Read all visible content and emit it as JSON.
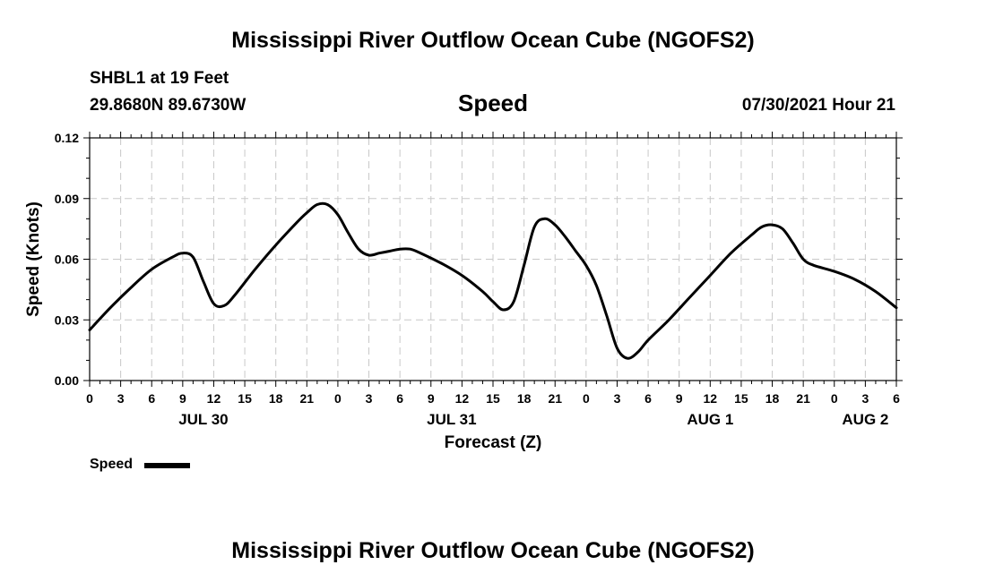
{
  "header": {
    "title_top": "Mississippi River Outflow Ocean Cube (NGOFS2)",
    "station_line": "SHBL1 at 19 Feet",
    "coords_line": "29.8680N  89.6730W",
    "variable": "Speed",
    "datetime": "07/30/2021 Hour 21",
    "title_bottom": "Mississippi River Outflow Ocean Cube (NGOFS2)"
  },
  "legend": {
    "label": "Speed",
    "color": "#000000"
  },
  "chart_data": {
    "type": "line",
    "title": "Speed",
    "xlabel": "Forecast (Z)",
    "ylabel": "Speed (Knots)",
    "xlim": [
      0,
      78
    ],
    "ylim": [
      0,
      0.12
    ],
    "grid": true,
    "x_tick_values": [
      0,
      3,
      6,
      9,
      12,
      15,
      18,
      21,
      24,
      27,
      30,
      33,
      36,
      39,
      42,
      45,
      48,
      51,
      54,
      57,
      60,
      63,
      66,
      69,
      72,
      75,
      78
    ],
    "x_tick_labels": [
      "0",
      "3",
      "6",
      "9",
      "12",
      "15",
      "18",
      "21",
      "0",
      "3",
      "6",
      "9",
      "12",
      "15",
      "18",
      "21",
      "0",
      "3",
      "6",
      "9",
      "12",
      "15",
      "18",
      "21",
      "0",
      "3",
      "6"
    ],
    "y_ticks": [
      0.0,
      0.03,
      0.06,
      0.09,
      0.12
    ],
    "y_tick_labels": [
      "0.00",
      "0.03",
      "0.06",
      "0.09",
      "0.12"
    ],
    "date_labels": [
      {
        "x": 11,
        "label": "JUL 30"
      },
      {
        "x": 35,
        "label": "JUL 31"
      },
      {
        "x": 60,
        "label": "AUG 1"
      },
      {
        "x": 75,
        "label": "AUG 2"
      }
    ],
    "series": [
      {
        "name": "Speed",
        "color": "#000000",
        "x": [
          0,
          2,
          4,
          6,
          8,
          9,
          10,
          11,
          12,
          13,
          14,
          16,
          18,
          20,
          21,
          22,
          23,
          24,
          25,
          26,
          27,
          28,
          29,
          30,
          31,
          32,
          34,
          36,
          38,
          39,
          40,
          41,
          42,
          43,
          44,
          45,
          46,
          47,
          48,
          49,
          50,
          51,
          52,
          53,
          54,
          56,
          58,
          60,
          62,
          64,
          65,
          66,
          67,
          68,
          69,
          70,
          72,
          74,
          76,
          78
        ],
        "values": [
          0.025,
          0.036,
          0.046,
          0.055,
          0.061,
          0.063,
          0.061,
          0.049,
          0.038,
          0.037,
          0.042,
          0.055,
          0.067,
          0.078,
          0.083,
          0.087,
          0.087,
          0.082,
          0.073,
          0.065,
          0.062,
          0.063,
          0.064,
          0.065,
          0.065,
          0.063,
          0.058,
          0.052,
          0.044,
          0.039,
          0.035,
          0.039,
          0.057,
          0.076,
          0.08,
          0.077,
          0.071,
          0.064,
          0.057,
          0.047,
          0.032,
          0.016,
          0.011,
          0.014,
          0.02,
          0.03,
          0.041,
          0.052,
          0.063,
          0.072,
          0.076,
          0.077,
          0.075,
          0.068,
          0.06,
          0.057,
          0.054,
          0.05,
          0.044,
          0.036
        ]
      }
    ]
  }
}
